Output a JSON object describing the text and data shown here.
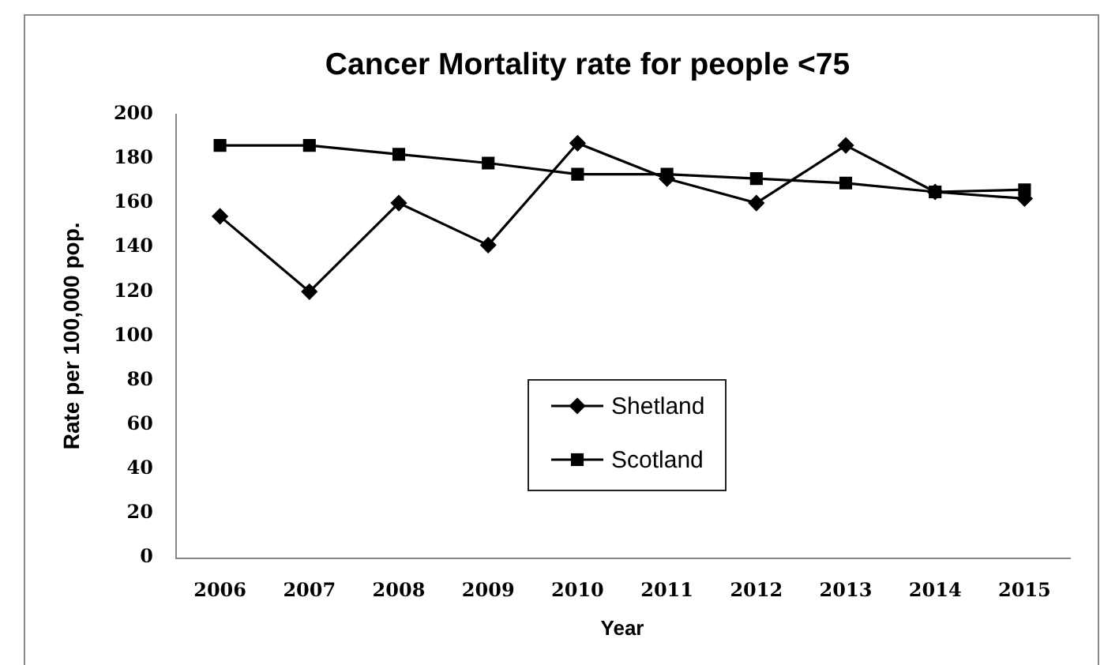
{
  "chart_data": {
    "type": "line",
    "title": "Cancer Mortality rate for people <75",
    "xlabel": "Year",
    "ylabel": "Rate per 100,000 pop.",
    "categories": [
      "2006",
      "2007",
      "2008",
      "2009",
      "2010",
      "2011",
      "2012",
      "2013",
      "2014",
      "2015"
    ],
    "series": [
      {
        "name": "Shetland",
        "color": "#000000",
        "marker": "diamond",
        "values": [
          154,
          120,
          160,
          141,
          187,
          171,
          160,
          186,
          165,
          162
        ]
      },
      {
        "name": "Scotland",
        "color": "#000000",
        "marker": "square",
        "values": [
          186,
          186,
          182,
          178,
          173,
          173,
          171,
          169,
          165,
          166
        ]
      }
    ],
    "ylim": [
      0,
      200
    ],
    "yticks": [
      0,
      20,
      40,
      60,
      80,
      100,
      120,
      140,
      160,
      180,
      200
    ],
    "legend": "bottom"
  }
}
